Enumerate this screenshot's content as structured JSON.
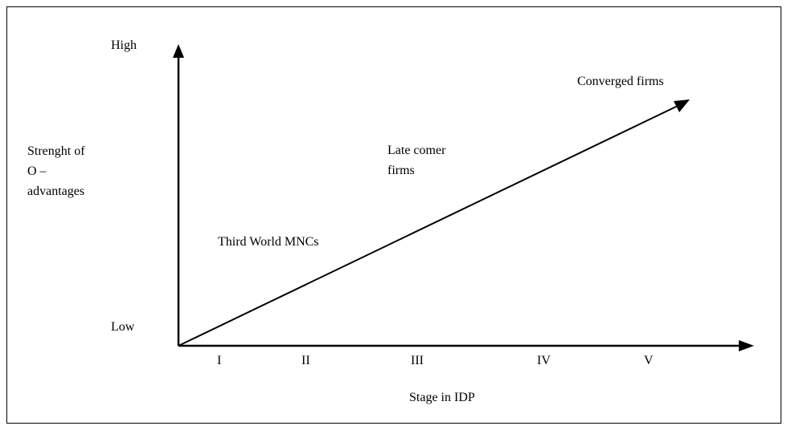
{
  "y_axis": {
    "high_label": "High",
    "low_label": "Low",
    "title_lines": [
      "Strenght of",
      "O –",
      "advantages"
    ]
  },
  "x_axis": {
    "title": "Stage in IDP",
    "stages": [
      "I",
      "II",
      "III",
      "IV",
      "V"
    ]
  },
  "trend_labels": {
    "third_world": "Third World MNCs",
    "late_comer_lines": [
      "Late comer",
      "firms"
    ],
    "converged": "Converged firms"
  },
  "colors": {
    "ink": "#000000",
    "background": "#ffffff"
  }
}
